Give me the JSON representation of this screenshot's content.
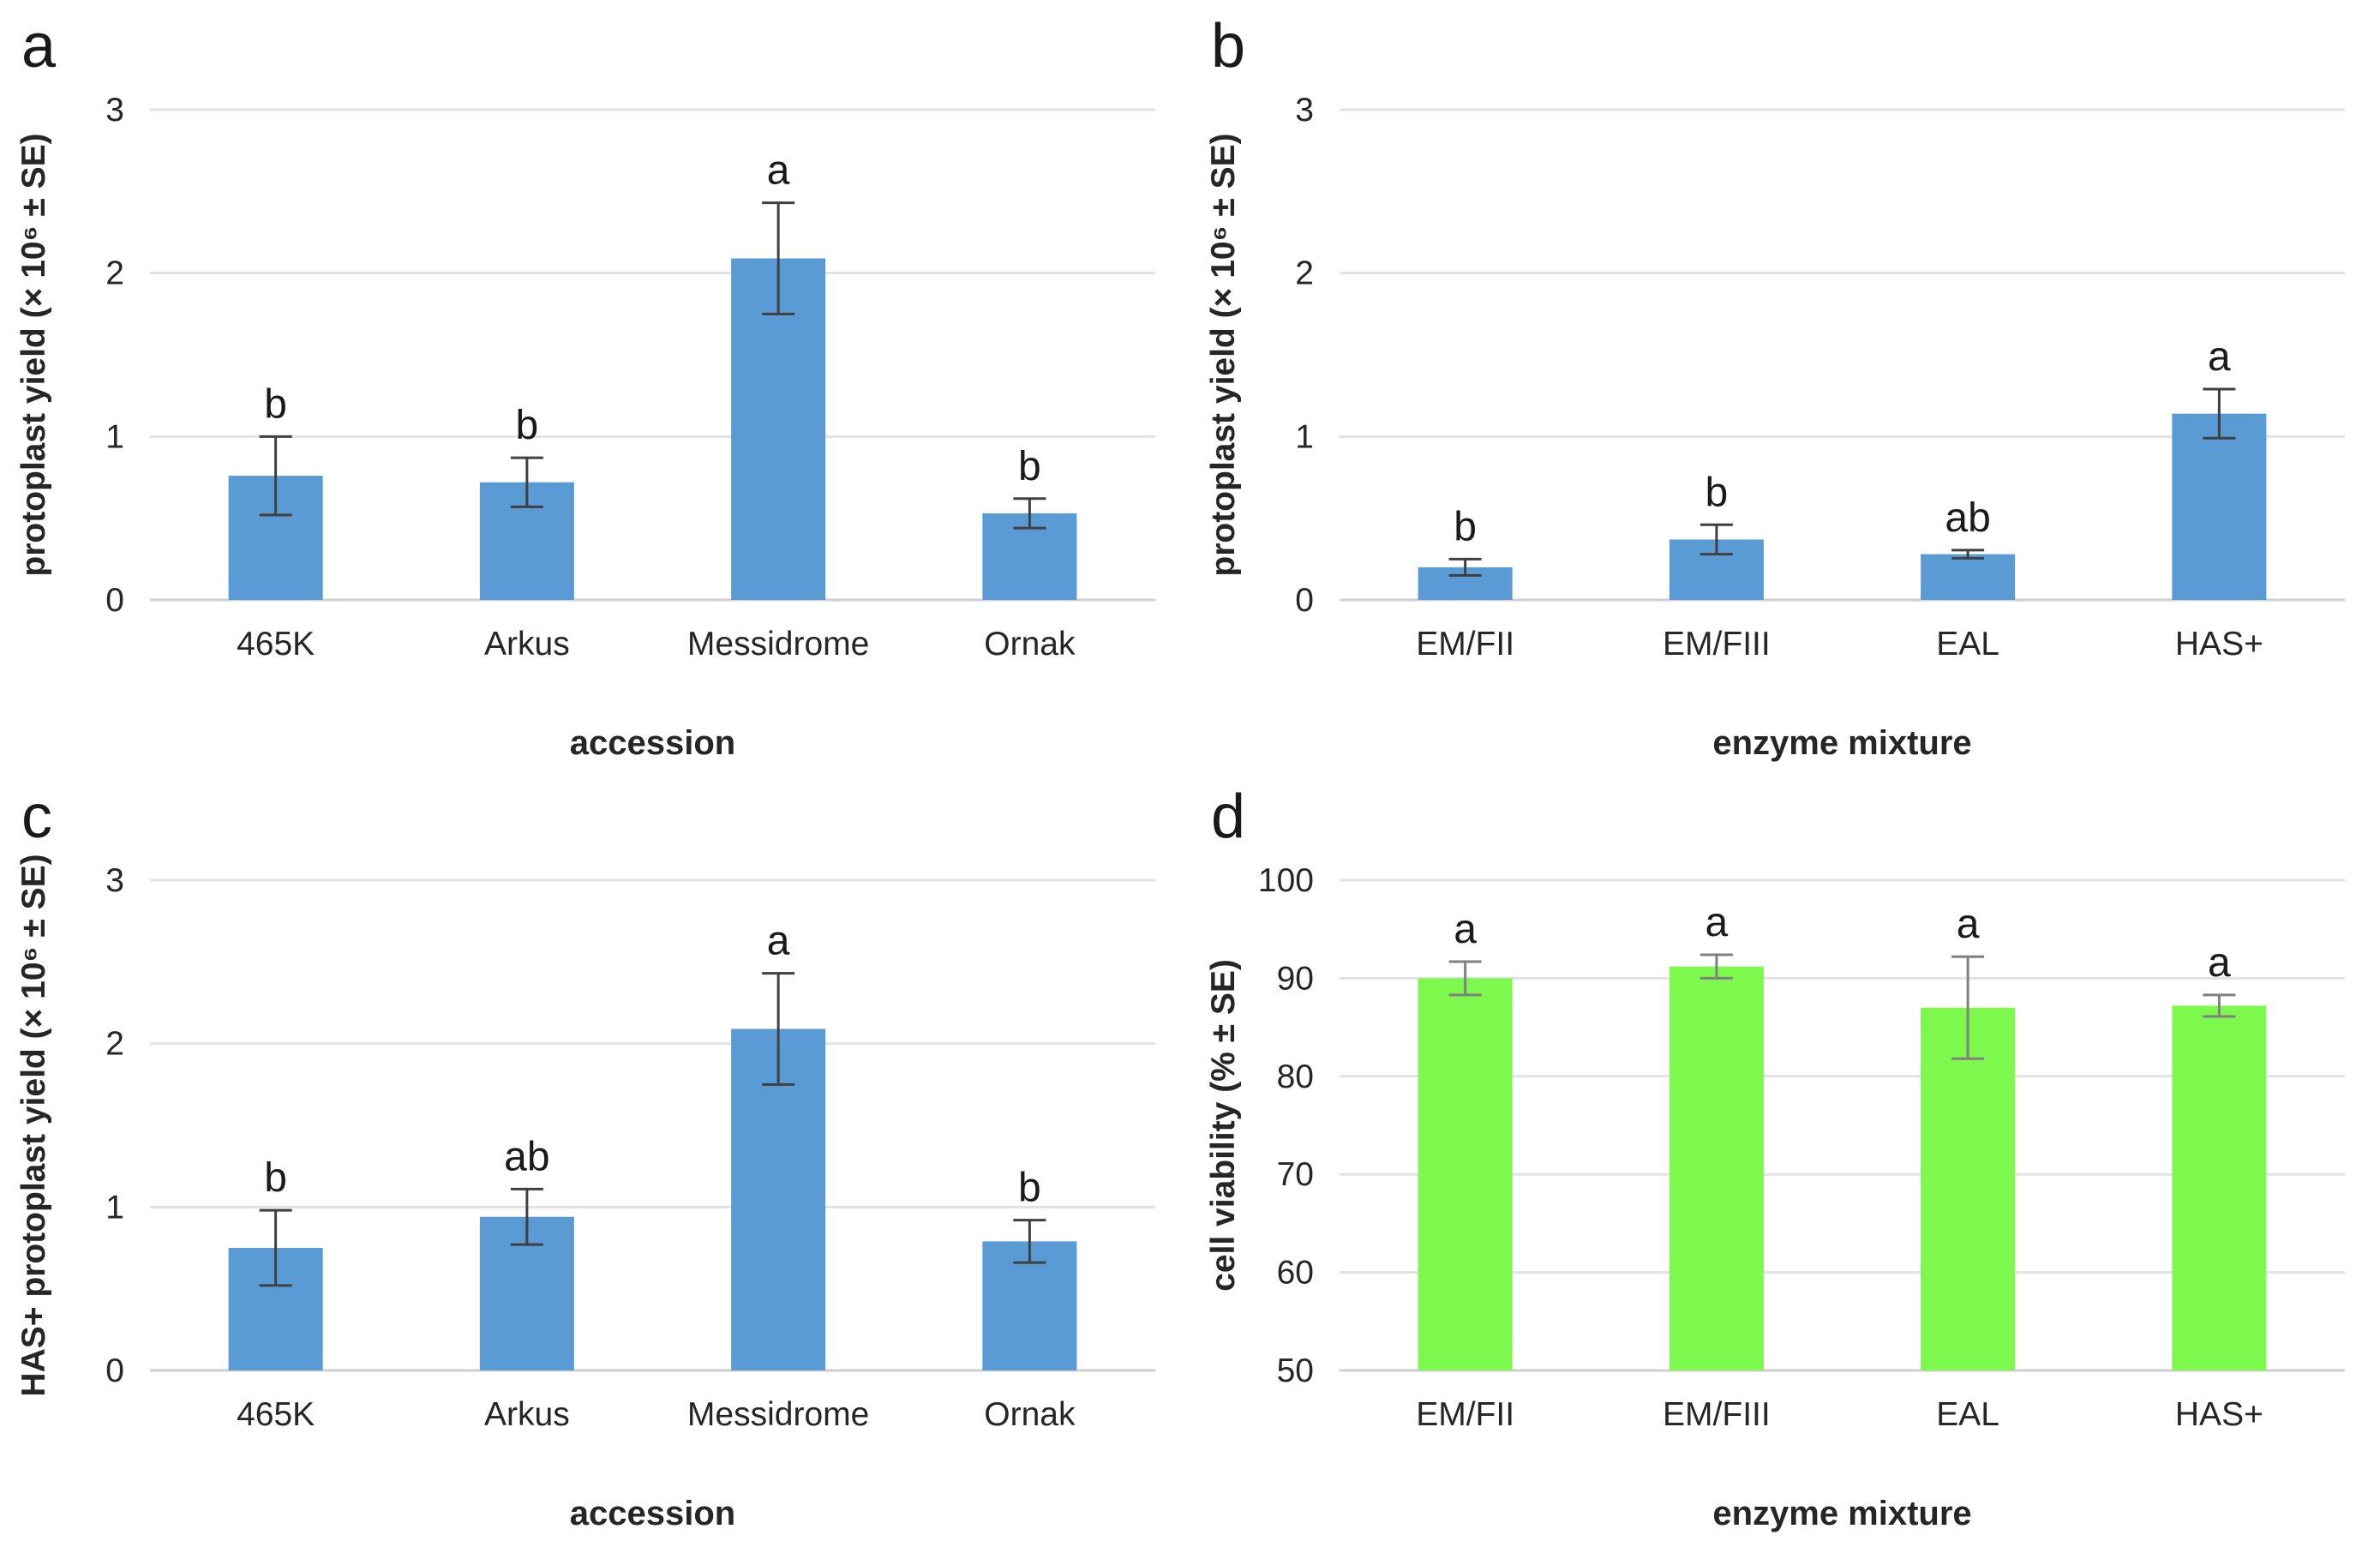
{
  "figure": {
    "background": "#FFFFFF",
    "style": {
      "grid_color": "#E2E2E2",
      "baseline_color": "#D0D0D0",
      "text_color": "#262626",
      "letter_color": "#1A1A1A",
      "blue_bar_color": "#5B9BD5",
      "green_bar_color": "#7DF84D"
    }
  },
  "chart_data": [
    {
      "id": "a",
      "type": "bar",
      "panel_letter": "a",
      "title": "",
      "ylabel": "protoplast yield (× 10⁶ ± SE)",
      "xlabel": "accession",
      "ylim": [
        0,
        3
      ],
      "yticks": [
        0,
        1,
        2,
        3
      ],
      "grid": true,
      "legend": "none",
      "categories": [
        "465K",
        "Arkus",
        "Messidrome",
        "Ornak"
      ],
      "values": [
        0.76,
        0.72,
        2.09,
        0.53
      ],
      "errors": [
        0.24,
        0.15,
        0.34,
        0.09
      ],
      "sig_letters": [
        "b",
        "b",
        "a",
        "b"
      ],
      "bar_color": "#5B9BD5",
      "error_color": "#404040"
    },
    {
      "id": "b",
      "type": "bar",
      "panel_letter": "b",
      "title": "",
      "ylabel": "protoplast yield (× 10⁶ ± SE)",
      "xlabel": "enzyme mixture",
      "ylim": [
        0,
        3
      ],
      "yticks": [
        0,
        1,
        2,
        3
      ],
      "grid": true,
      "legend": "none",
      "categories": [
        "EM/FII",
        "EM/FIII",
        "EAL",
        "HAS+"
      ],
      "values": [
        0.2,
        0.37,
        0.28,
        1.14
      ],
      "errors": [
        0.05,
        0.09,
        0.025,
        0.15
      ],
      "sig_letters": [
        "b",
        "b",
        "ab",
        "a"
      ],
      "bar_color": "#5B9BD5",
      "error_color": "#404040"
    },
    {
      "id": "c",
      "type": "bar",
      "panel_letter": "c",
      "title": "",
      "ylabel": "HAS+ protoplast yield (× 10⁶ ± SE)",
      "xlabel": "accession",
      "ylim": [
        0,
        3
      ],
      "yticks": [
        0,
        1,
        2,
        3
      ],
      "grid": true,
      "legend": "none",
      "categories": [
        "465K",
        "Arkus",
        "Messidrome",
        "Ornak"
      ],
      "values": [
        0.75,
        0.94,
        2.09,
        0.79
      ],
      "errors": [
        0.23,
        0.17,
        0.34,
        0.13
      ],
      "sig_letters": [
        "b",
        "ab",
        "a",
        "b"
      ],
      "bar_color": "#5B9BD5",
      "error_color": "#404040"
    },
    {
      "id": "d",
      "type": "bar",
      "panel_letter": "d",
      "title": "",
      "ylabel": "cell viability (% ± SE)",
      "xlabel": "enzyme mixture",
      "ylim": [
        50,
        100
      ],
      "yticks": [
        50,
        60,
        70,
        80,
        90,
        100
      ],
      "grid": true,
      "legend": "none",
      "categories": [
        "EM/FII",
        "EM/FIII",
        "EAL",
        "HAS+"
      ],
      "values": [
        90,
        91.2,
        87,
        87.2
      ],
      "errors": [
        1.7,
        1.2,
        5.2,
        1.1
      ],
      "sig_letters": [
        "a",
        "a",
        "a",
        "a"
      ],
      "bar_color": "#7DF84D",
      "error_color": "#808080"
    }
  ]
}
